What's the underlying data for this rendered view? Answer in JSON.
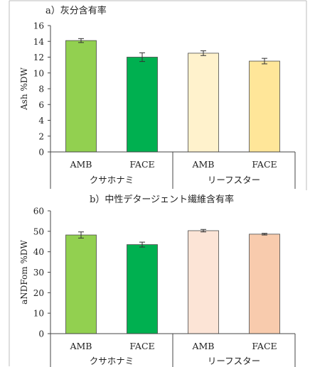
{
  "chart_data": [
    {
      "type": "bar",
      "title": "a）灰分含有率",
      "ylabel": "Ash %DW",
      "ylim": [
        0,
        16
      ],
      "yticks": [
        0,
        2,
        4,
        6,
        8,
        10,
        12,
        14,
        16
      ],
      "tick_labels": [
        "0",
        "2",
        "4",
        "6",
        "8",
        "10",
        "12",
        "14",
        "16"
      ],
      "categories": [
        "AMB",
        "FACE",
        "AMB",
        "FACE"
      ],
      "groups": [
        "クサホナミ",
        "リーフスター"
      ],
      "values": [
        14.1,
        12.0,
        12.5,
        11.5
      ],
      "errors": [
        0.25,
        0.55,
        0.3,
        0.35
      ],
      "colors": [
        "#92d050",
        "#00b050",
        "#fff2cc",
        "#ffe699"
      ],
      "grid": false
    },
    {
      "type": "bar",
      "title": "b）中性デタージェント繊維含有率",
      "ylabel": "aNDFom %DW",
      "ylim": [
        0,
        60
      ],
      "yticks": [
        0,
        10,
        20,
        30,
        40,
        50,
        60
      ],
      "tick_labels": [
        "0",
        "10",
        "20",
        "30",
        "40",
        "50",
        "60"
      ],
      "categories": [
        "AMB",
        "FACE",
        "AMB",
        "FACE"
      ],
      "groups": [
        "クサホナミ",
        "リーフスター"
      ],
      "values": [
        48.2,
        43.5,
        50.3,
        48.6
      ],
      "errors": [
        1.5,
        1.2,
        0.6,
        0.4
      ],
      "colors": [
        "#92d050",
        "#00b050",
        "#fce4d6",
        "#f8cbad"
      ],
      "grid": false
    }
  ]
}
